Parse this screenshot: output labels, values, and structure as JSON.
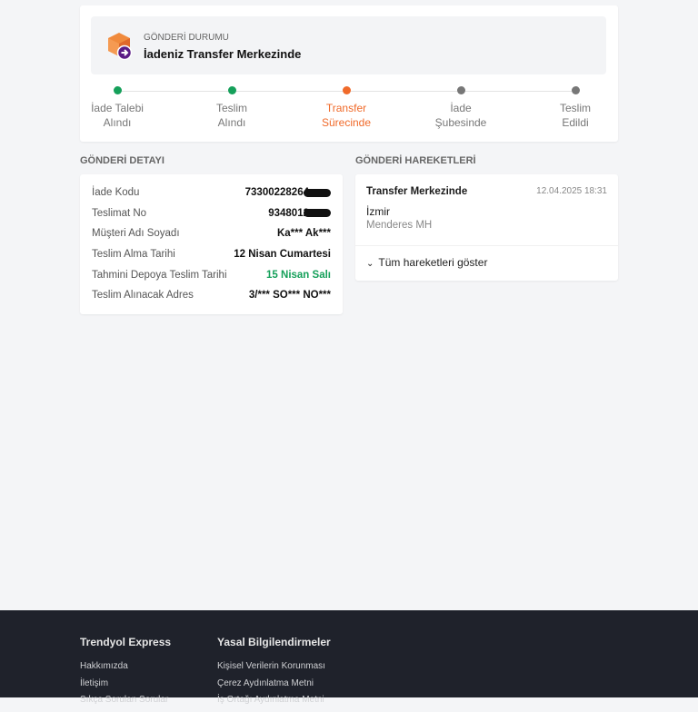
{
  "status": {
    "label": "GÖNDERİ DURUMU",
    "title": "İadeniz Transfer Merkezinde",
    "steps": [
      {
        "label1": "İade Talebi",
        "label2": "Alındı",
        "state": "done"
      },
      {
        "label1": "Teslim",
        "label2": "Alındı",
        "state": "done"
      },
      {
        "label1": "Transfer",
        "label2": "Sürecinde",
        "state": "active"
      },
      {
        "label1": "İade",
        "label2": "Şubesinde",
        "state": "pending"
      },
      {
        "label1": "Teslim",
        "label2": "Edildi",
        "state": "pending"
      }
    ]
  },
  "colors": {
    "done": "#15a05a",
    "active": "#f06a2a",
    "pending": "#777777",
    "green_text": "#15a05a"
  },
  "detail": {
    "heading": "GÖNDERİ DETAYI",
    "rows": [
      {
        "k": "İade Kodu",
        "v": "73300228264"
      },
      {
        "k": "Teslimat No",
        "v": "9348012"
      },
      {
        "k": "Müşteri Adı Soyadı",
        "v": "Ka*** Ak***"
      },
      {
        "k": "Teslim Alma Tarihi",
        "v": "12 Nisan Cumartesi"
      },
      {
        "k": "Tahmini Depoya Teslim Tarihi",
        "v": "15 Nisan Salı"
      },
      {
        "k": "Teslim Alınacak Adres",
        "v": "3/*** SO*** NO***"
      }
    ]
  },
  "moves": {
    "heading": "GÖNDERİ HAREKETLERİ",
    "event": "Transfer Merkezinde",
    "time": "12.04.2025 18:31",
    "city": "İzmir",
    "district": "Menderes MH",
    "show_all": "Tüm hareketleri göster"
  },
  "footer": {
    "col1": {
      "title": "Trendyol Express",
      "links": [
        "Hakkımızda",
        "İletişim",
        "Sıkça Sorulan Sorular"
      ]
    },
    "col2": {
      "title": "Yasal Bilgilendirmeler",
      "links": [
        "Kişisel Verilerin Korunması",
        "Çerez Aydınlatma Metni",
        "İş Ortağı Aydınlatma Metni"
      ]
    }
  }
}
